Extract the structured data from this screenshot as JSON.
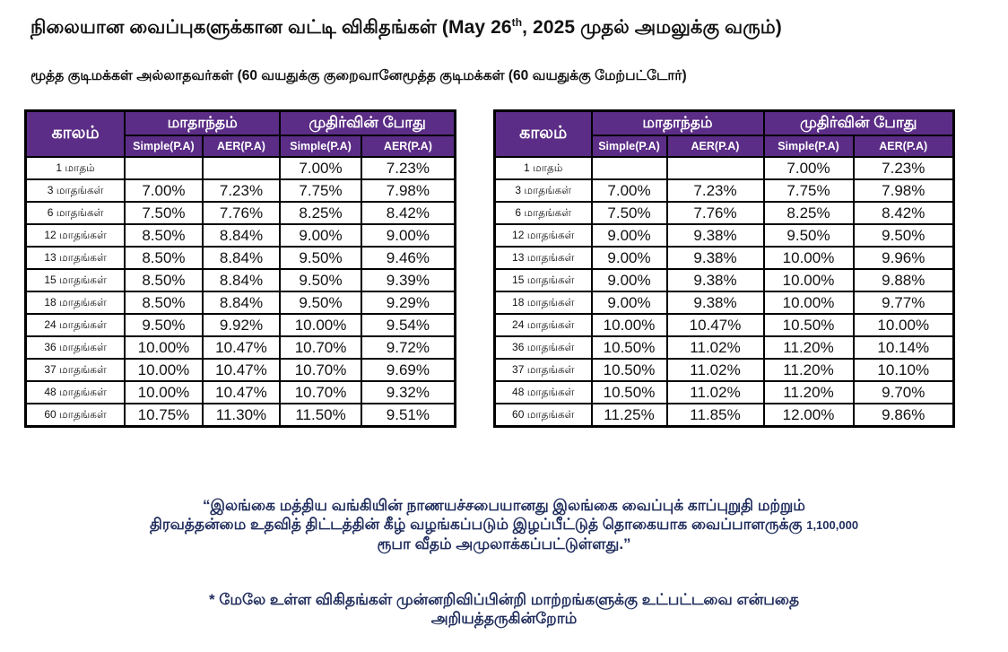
{
  "header": {
    "title_tamil": "நிலையான வைப்புகளுக்கான வட்டி விகிதங்கள் (May 26",
    "title_sup": "th",
    "title_end": ", 2025 முதல் அமலுக்கு வரும்)",
    "subtitle": "மூத்த குடிமக்கள் அல்லாதவர்கள் (60 வயதுக்கு குறைவானேமூத்த குடிமக்கள் (60 வயதுக்கு மேற்பட்டோர்)"
  },
  "table_headers": {
    "period": "காலம்",
    "monthly": "மாதாந்தம்",
    "maturity": "முதிர்வின் போது",
    "simple": "Simple(P.A)",
    "aer": "AER(P.A)"
  },
  "non_senior": {
    "rows": [
      {
        "period": "1 மாதம்",
        "m_simple": "",
        "m_aer": "",
        "mat_simple": "7.00%",
        "mat_aer": "7.23%"
      },
      {
        "period": "3 மாதங்கள்",
        "m_simple": "7.00%",
        "m_aer": "7.23%",
        "mat_simple": "7.75%",
        "mat_aer": "7.98%"
      },
      {
        "period": "6 மாதங்கள்",
        "m_simple": "7.50%",
        "m_aer": "7.76%",
        "mat_simple": "8.25%",
        "mat_aer": "8.42%"
      },
      {
        "period": "12 மாதங்கள்",
        "m_simple": "8.50%",
        "m_aer": "8.84%",
        "mat_simple": "9.00%",
        "mat_aer": "9.00%"
      },
      {
        "period": "13 மாதங்கள்",
        "m_simple": "8.50%",
        "m_aer": "8.84%",
        "mat_simple": "9.50%",
        "mat_aer": "9.46%"
      },
      {
        "period": "15 மாதங்கள்",
        "m_simple": "8.50%",
        "m_aer": "8.84%",
        "mat_simple": "9.50%",
        "mat_aer": "9.39%"
      },
      {
        "period": "18 மாதங்கள்",
        "m_simple": "8.50%",
        "m_aer": "8.84%",
        "mat_simple": "9.50%",
        "mat_aer": "9.29%"
      },
      {
        "period": "24 மாதங்கள்",
        "m_simple": "9.50%",
        "m_aer": "9.92%",
        "mat_simple": "10.00%",
        "mat_aer": "9.54%"
      },
      {
        "period": "36 மாதங்கள்",
        "m_simple": "10.00%",
        "m_aer": "10.47%",
        "mat_simple": "10.70%",
        "mat_aer": "9.72%"
      },
      {
        "period": "37 மாதங்கள்",
        "m_simple": "10.00%",
        "m_aer": "10.47%",
        "mat_simple": "10.70%",
        "mat_aer": "9.69%"
      },
      {
        "period": "48 மாதங்கள்",
        "m_simple": "10.00%",
        "m_aer": "10.47%",
        "mat_simple": "10.70%",
        "mat_aer": "9.32%"
      },
      {
        "period": "60 மாதங்கள்",
        "m_simple": "10.75%",
        "m_aer": "11.30%",
        "mat_simple": "11.50%",
        "mat_aer": "9.51%"
      }
    ]
  },
  "senior": {
    "rows": [
      {
        "period": "1 மாதம்",
        "m_simple": "",
        "m_aer": "",
        "mat_simple": "7.00%",
        "mat_aer": "7.23%"
      },
      {
        "period": "3 மாதங்கள்",
        "m_simple": "7.00%",
        "m_aer": "7.23%",
        "mat_simple": "7.75%",
        "mat_aer": "7.98%"
      },
      {
        "period": "6 மாதங்கள்",
        "m_simple": "7.50%",
        "m_aer": "7.76%",
        "mat_simple": "8.25%",
        "mat_aer": "8.42%"
      },
      {
        "period": "12 மாதங்கள்",
        "m_simple": "9.00%",
        "m_aer": "9.38%",
        "mat_simple": "9.50%",
        "mat_aer": "9.50%"
      },
      {
        "period": "13 மாதங்கள்",
        "m_simple": "9.00%",
        "m_aer": "9.38%",
        "mat_simple": "10.00%",
        "mat_aer": "9.96%"
      },
      {
        "period": "15 மாதங்கள்",
        "m_simple": "9.00%",
        "m_aer": "9.38%",
        "mat_simple": "10.00%",
        "mat_aer": "9.88%"
      },
      {
        "period": "18 மாதங்கள்",
        "m_simple": "9.00%",
        "m_aer": "9.38%",
        "mat_simple": "10.00%",
        "mat_aer": "9.77%"
      },
      {
        "period": "24 மாதங்கள்",
        "m_simple": "10.00%",
        "m_aer": "10.47%",
        "mat_simple": "10.50%",
        "mat_aer": "10.00%"
      },
      {
        "period": "36 மாதங்கள்",
        "m_simple": "10.50%",
        "m_aer": "11.02%",
        "mat_simple": "11.20%",
        "mat_aer": "10.14%"
      },
      {
        "period": "37 மாதங்கள்",
        "m_simple": "10.50%",
        "m_aer": "11.02%",
        "mat_simple": "11.20%",
        "mat_aer": "10.10%"
      },
      {
        "period": "48 மாதங்கள்",
        "m_simple": "10.50%",
        "m_aer": "11.02%",
        "mat_simple": "11.20%",
        "mat_aer": "9.70%"
      },
      {
        "period": "60 மாதங்கள்",
        "m_simple": "11.25%",
        "m_aer": "11.85%",
        "mat_simple": "12.00%",
        "mat_aer": "9.86%"
      }
    ]
  },
  "footer": {
    "quote_line1": "“இலங்கை மத்திய வங்கியின் நாணயச்சபையானது இலங்கை வைப்புக் காப்புறுதி மற்றும்",
    "quote_line2": "திரவத்தன்மை உதவித் திட்டத்தின் கீழ் வழங்கப்படும் இழப்பீட்டுத் தொகையாக வைப்பாளருக்கு",
    "quote_amount": "1,100,000",
    "quote_line3": "ரூபா வீதம் அமுலாக்கப்பட்டுள்ளது.”",
    "disclaimer_line1": "* மேலே உள்ள விகிதங்கள் முன்னறிவிப்பின்றி மாற்றங்களுக்கு உட்பட்டவை என்பதை",
    "disclaimer_line2": "அறியத்தருகின்றோம்"
  },
  "colors": {
    "header_bg": "#5b2d86",
    "header_text": "#ffffff",
    "notice_text": "#1f2c5c"
  }
}
